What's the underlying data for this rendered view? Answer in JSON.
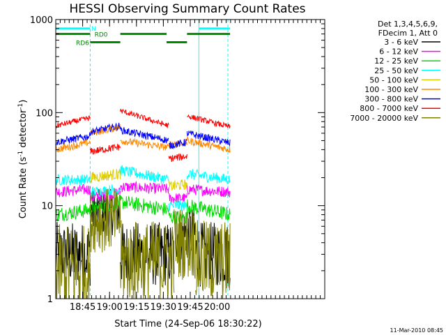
{
  "chart_data": {
    "type": "line",
    "title": "HESSI Observing Summary Count Rates",
    "xlabel": "Start Time (24-Sep-06 18:30:22)",
    "ylabel_main": "Count Rate (s",
    "ylabel_sup1": "-1",
    "ylabel_mid": " detector",
    "ylabel_sup2": "-1",
    "ylabel_end": ")",
    "yscale": "log",
    "ylim": [
      1,
      1000
    ],
    "xlim_minutes": [
      18.5,
      21.0
    ],
    "y_ticks": [
      {
        "value": 1,
        "label": "1"
      },
      {
        "value": 10,
        "label": "10"
      },
      {
        "value": 100,
        "label": "100"
      },
      {
        "value": 1000,
        "label": "1000"
      }
    ],
    "x_ticks": [
      {
        "value": 18.75,
        "label": "18:45"
      },
      {
        "value": 19.0,
        "label": "19:00"
      },
      {
        "value": 19.25,
        "label": "19:15"
      },
      {
        "value": 19.5,
        "label": "19:30"
      },
      {
        "value": 19.75,
        "label": "19:45"
      },
      {
        "value": 20.0,
        "label": "20:00"
      }
    ],
    "legend_header": [
      "Det 1,3,4,5,6,9,",
      "FDecim 1, Att 0"
    ],
    "series": [
      {
        "name": "3 - 6 keV",
        "color": "#000000",
        "segments": [
          {
            "x0": 18.5,
            "x1": 18.82,
            "y0": 3,
            "y1": 3,
            "noise": 0.35
          },
          {
            "x0": 18.82,
            "x1": 19.1,
            "y0": 8.5,
            "y1": 8.5,
            "noise": 0.25
          },
          {
            "x0": 19.1,
            "x1": 19.6,
            "y0": 3,
            "y1": 3,
            "noise": 0.35
          },
          {
            "x0": 19.6,
            "x1": 19.8,
            "y0": 5,
            "y1": 5,
            "noise": 0.3
          },
          {
            "x0": 19.8,
            "x1": 20.12,
            "y0": 3,
            "y1": 3,
            "noise": 0.35
          }
        ]
      },
      {
        "name": "6 - 12 keV",
        "color": "#ff00ff",
        "segments": [
          {
            "x0": 18.5,
            "x1": 18.82,
            "y0": 14,
            "y1": 15,
            "noise": 0.06
          },
          {
            "x0": 18.82,
            "x1": 19.1,
            "y0": 12,
            "y1": 14,
            "noise": 0.06
          },
          {
            "x0": 19.1,
            "x1": 19.55,
            "y0": 16,
            "y1": 15,
            "noise": 0.06
          },
          {
            "x0": 19.55,
            "x1": 19.72,
            "y0": 12,
            "y1": 12,
            "noise": 0.06
          },
          {
            "x0": 19.72,
            "x1": 20.12,
            "y0": 15,
            "y1": 14,
            "noise": 0.06
          }
        ]
      },
      {
        "name": "12 - 25 keV",
        "color": "#00dd00",
        "segments": [
          {
            "x0": 18.5,
            "x1": 18.82,
            "y0": 8,
            "y1": 9,
            "noise": 0.08
          },
          {
            "x0": 18.82,
            "x1": 19.1,
            "y0": 9,
            "y1": 11,
            "noise": 0.08
          },
          {
            "x0": 19.1,
            "x1": 19.55,
            "y0": 11,
            "y1": 9,
            "noise": 0.08
          },
          {
            "x0": 19.55,
            "x1": 19.72,
            "y0": 7.5,
            "y1": 7.5,
            "noise": 0.08
          },
          {
            "x0": 19.72,
            "x1": 20.12,
            "y0": 10,
            "y1": 8,
            "noise": 0.08
          }
        ]
      },
      {
        "name": "25 - 50 keV",
        "color": "#00ffff",
        "segments": [
          {
            "x0": 18.5,
            "x1": 18.82,
            "y0": 19,
            "y1": 19,
            "noise": 0.06
          },
          {
            "x0": 18.82,
            "x1": 19.1,
            "y0": 14,
            "y1": 15,
            "noise": 0.06
          },
          {
            "x0": 19.1,
            "x1": 19.55,
            "y0": 24,
            "y1": 19,
            "noise": 0.06
          },
          {
            "x0": 19.55,
            "x1": 19.72,
            "y0": 10,
            "y1": 10,
            "noise": 0.06
          },
          {
            "x0": 19.72,
            "x1": 20.12,
            "y0": 22,
            "y1": 19,
            "noise": 0.06
          }
        ]
      },
      {
        "name": "50 - 100 keV",
        "color": "#ddcc00",
        "segments": [
          {
            "x0": 18.82,
            "x1": 19.1,
            "y0": 20,
            "y1": 22,
            "noise": 0.06
          },
          {
            "x0": 19.55,
            "x1": 19.72,
            "y0": 16,
            "y1": 17,
            "noise": 0.06
          }
        ]
      },
      {
        "name": "100 - 300 keV",
        "color": "#ff8800",
        "segments": [
          {
            "x0": 18.5,
            "x1": 18.82,
            "y0": 40,
            "y1": 48,
            "noise": 0.04
          },
          {
            "x0": 18.82,
            "x1": 19.1,
            "y0": 60,
            "y1": 70,
            "noise": 0.04
          },
          {
            "x0": 19.1,
            "x1": 19.55,
            "y0": 50,
            "y1": 42,
            "noise": 0.04
          },
          {
            "x0": 19.55,
            "x1": 19.72,
            "y0": 46,
            "y1": 48,
            "noise": 0.04
          },
          {
            "x0": 19.72,
            "x1": 20.12,
            "y0": 50,
            "y1": 40,
            "noise": 0.04
          }
        ]
      },
      {
        "name": "300 - 800 keV",
        "color": "#0000ff",
        "segments": [
          {
            "x0": 18.5,
            "x1": 18.82,
            "y0": 48,
            "y1": 56,
            "noise": 0.04
          },
          {
            "x0": 18.82,
            "x1": 19.1,
            "y0": 62,
            "y1": 72,
            "noise": 0.04
          },
          {
            "x0": 19.1,
            "x1": 19.55,
            "y0": 65,
            "y1": 50,
            "noise": 0.04
          },
          {
            "x0": 19.55,
            "x1": 19.72,
            "y0": 44,
            "y1": 48,
            "noise": 0.04
          },
          {
            "x0": 19.72,
            "x1": 20.12,
            "y0": 60,
            "y1": 47,
            "noise": 0.04
          }
        ]
      },
      {
        "name": "800 - 7000 keV",
        "color": "#ff0000",
        "segments": [
          {
            "x0": 18.5,
            "x1": 18.82,
            "y0": 72,
            "y1": 88,
            "noise": 0.03
          },
          {
            "x0": 18.82,
            "x1": 19.1,
            "y0": 38,
            "y1": 43,
            "noise": 0.04
          },
          {
            "x0": 19.1,
            "x1": 19.55,
            "y0": 105,
            "y1": 72,
            "noise": 0.03
          },
          {
            "x0": 19.55,
            "x1": 19.72,
            "y0": 32,
            "y1": 34,
            "noise": 0.04
          },
          {
            "x0": 19.72,
            "x1": 20.12,
            "y0": 92,
            "y1": 70,
            "noise": 0.03
          }
        ]
      },
      {
        "name": "7000 - 20000 keV",
        "color": "#808000",
        "segments": [
          {
            "x0": 18.5,
            "x1": 18.82,
            "y0": 2,
            "y1": 2,
            "noise": 0.5
          },
          {
            "x0": 18.82,
            "x1": 19.1,
            "y0": 7,
            "y1": 7,
            "noise": 0.35
          },
          {
            "x0": 19.1,
            "x1": 19.6,
            "y0": 2.5,
            "y1": 2.5,
            "noise": 0.45
          },
          {
            "x0": 19.6,
            "x1": 19.8,
            "y0": 4,
            "y1": 4,
            "noise": 0.4
          },
          {
            "x0": 19.8,
            "x1": 20.12,
            "y0": 2.5,
            "y1": 2.5,
            "noise": 0.45
          }
        ]
      }
    ],
    "vertical_markers": [
      {
        "x": 18.5,
        "style": "solid",
        "color": "#00ffff"
      },
      {
        "x": 18.82,
        "style": "dashed",
        "color": "#00ffff"
      },
      {
        "x": 19.83,
        "style": "solid",
        "color": "#00ffff"
      },
      {
        "x": 20.1,
        "style": "dashed",
        "color": "#00ffff"
      }
    ],
    "flags": [
      {
        "label": "N",
        "color": "#00ffff",
        "y": 800,
        "spans": [
          [
            18.5,
            18.82
          ],
          [
            19.83,
            20.12
          ]
        ]
      },
      {
        "label": "RD0",
        "color": "#008800",
        "y": 700,
        "spans": [
          [
            18.5,
            18.82
          ],
          [
            19.1,
            19.53
          ],
          [
            19.72,
            20.12
          ]
        ]
      },
      {
        "label": "RD6",
        "color": "#008800",
        "y": 570,
        "spans": [
          [
            18.82,
            19.1
          ],
          [
            19.53,
            19.72
          ]
        ]
      }
    ],
    "footer_date": "11-Mar-2010 08:45"
  }
}
